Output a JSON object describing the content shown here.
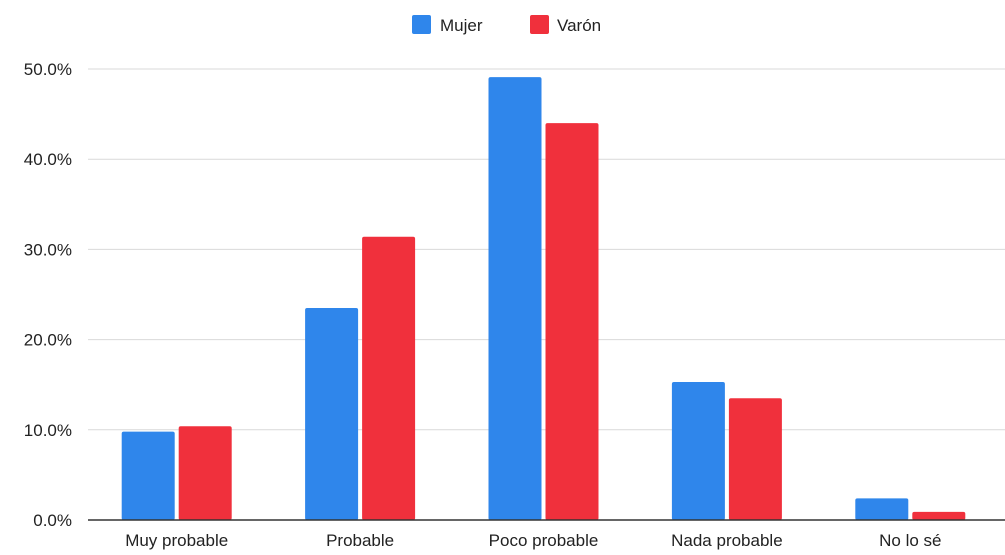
{
  "chart_data": {
    "type": "bar",
    "title": "",
    "xlabel": "",
    "ylabel": "",
    "categories": [
      "Muy probable",
      "Probable",
      "Poco probable",
      "Nada probable",
      "No lo sé"
    ],
    "series": [
      {
        "name": "Mujer",
        "values": [
          9.8,
          23.5,
          49.1,
          15.3,
          2.4
        ]
      },
      {
        "name": "Varón",
        "values": [
          10.4,
          31.4,
          44.0,
          13.5,
          0.9
        ]
      }
    ],
    "ylim": [
      0,
      50
    ],
    "yticks": [
      0,
      10,
      20,
      30,
      40,
      50
    ],
    "ytick_labels": [
      "0.0%",
      "10.0%",
      "20.0%",
      "30.0%",
      "40.0%",
      "50.0%"
    ],
    "grid": true,
    "legend": "top-center",
    "colors": [
      "#2f86eb",
      "#f0303c"
    ]
  }
}
